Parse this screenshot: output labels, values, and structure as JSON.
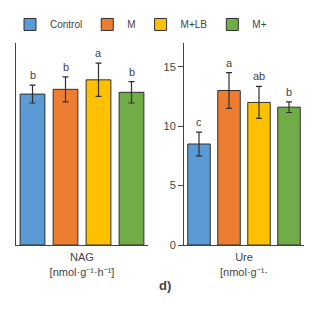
{
  "chart_data": [
    {
      "type": "bar",
      "categories": [
        "Control",
        "M",
        "M+LB",
        "M+"
      ],
      "colors": [
        "#5B9BD5",
        "#ED7D31",
        "#FFC000",
        "#70AD47"
      ],
      "values": [
        12.7,
        13.1,
        13.9,
        12.85
      ],
      "errors": [
        0.75,
        1.05,
        1.4,
        0.9
      ],
      "annotations": [
        {
          "category": "Control",
          "text": "b"
        },
        {
          "category": "M",
          "text": "b"
        },
        {
          "category": "M+LB",
          "text": "a"
        },
        {
          "category": "M+",
          "text": "b"
        },
        {
          "text": "d)"
        }
      ],
      "xlabel": "NAG\n[nmol·g⁻¹·h⁻¹]",
      "ylim": [
        0,
        17
      ],
      "yticks": [],
      "tick_labels": false,
      "grid": false,
      "legend": "top"
    },
    {
      "type": "bar",
      "categories": [
        "Control",
        "M",
        "M+LB",
        "M+"
      ],
      "colors": [
        "#5B9BD5",
        "#ED7D31",
        "#FFC000",
        "#70AD47"
      ],
      "values": [
        8.5,
        13.0,
        12.0,
        11.6
      ],
      "errors": [
        1.0,
        1.5,
        1.35,
        0.45
      ],
      "annotations": [
        {
          "category": "Control",
          "text": "c"
        },
        {
          "category": "M",
          "text": "a"
        },
        {
          "category": "M+LB",
          "text": "ab"
        },
        {
          "category": "M+",
          "text": "b"
        }
      ],
      "xlabel": "Ure\n[nmol·g⁻¹·",
      "ylim": [
        0,
        17
      ],
      "yticks": [
        0,
        5,
        10,
        15
      ],
      "tick_labels": "y",
      "grid": false
    }
  ]
}
